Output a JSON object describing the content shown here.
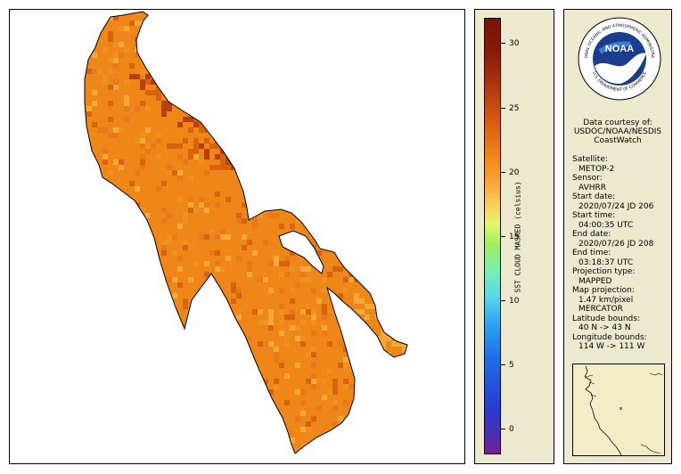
{
  "colorbar": {
    "title": "SST CLOUD MASKED (celsius)",
    "ticks": [
      "30",
      "25",
      "20",
      "15",
      "10",
      "5",
      "0"
    ],
    "range": [
      -2,
      32
    ]
  },
  "credits": {
    "logo_text": "NOAA",
    "logo_ring_text": "NATIONAL OCEANIC AND ATMOSPHERIC ADMINISTRATION",
    "logo_bottom_text": "U.S. DEPARTMENT OF COMMERCE",
    "line1": "Data courtesy of:",
    "line2": "USDOC/NOAA/NESDIS",
    "line3": "CoastWatch"
  },
  "metadata": {
    "satellite_label": "Satellite:",
    "satellite": "METOP-2",
    "sensor_label": "Sensor:",
    "sensor": "AVHRR",
    "start_date_label": "Start date:",
    "start_date": "2020/07/24 JD 206",
    "start_time_label": "Start time:",
    "start_time": "04:00:35 UTC",
    "end_date_label": "End date:",
    "end_date": "2020/07/26 JD 208",
    "end_time_label": "End time:",
    "end_time": "03:18:37 UTC",
    "projection_type_label": "Projection type:",
    "projection_type": "MAPPED",
    "map_projection_label": "Map projection:",
    "resolution": "1.47 km/pixel",
    "map_projection": "MERCATOR",
    "lat_bounds_label": "Latitude bounds:",
    "lat_bounds": "40 N -> 43 N",
    "lon_bounds_label": "Longitude bounds:",
    "lon_bounds": "114 W -> 111 W"
  },
  "colors": {
    "lake_base": "#ef8618",
    "lake_warm": "#d8620e",
    "lake_hot": "#b8400c",
    "lake_cool": "#f6a838",
    "panel_bg": "#ece9cf",
    "inset_bg": "#f4ecc6",
    "location_marker": "#d0601a"
  }
}
